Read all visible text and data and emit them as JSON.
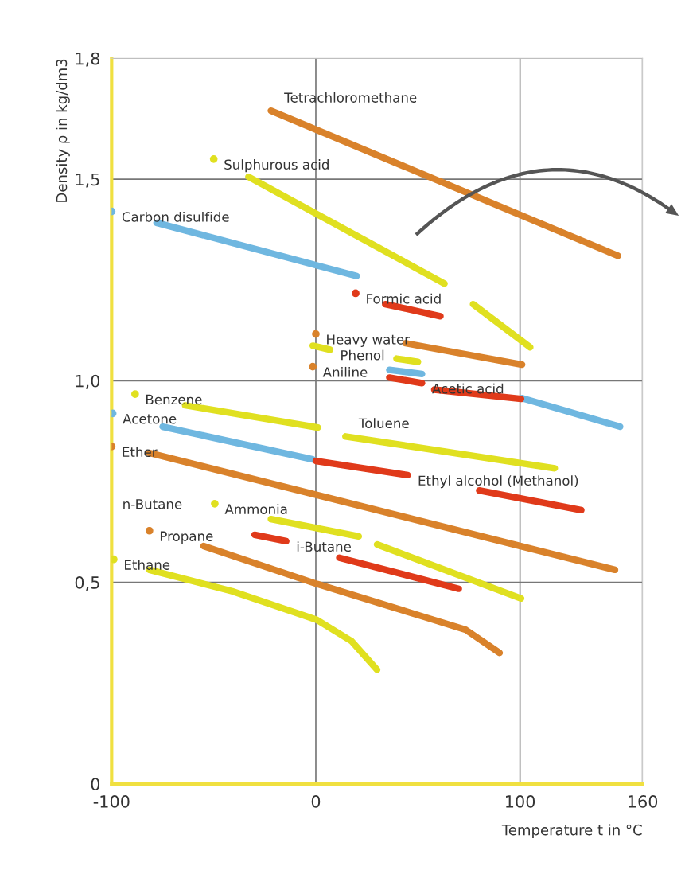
{
  "chart_data": {
    "type": "line",
    "xlabel": "Temperature t in °C",
    "ylabel": "Density ρ in kg/dm3",
    "xlim": [
      -100,
      160
    ],
    "ylim": [
      0,
      1.8
    ],
    "xticks": [
      -100,
      0,
      100,
      160
    ],
    "yticks": [
      0,
      {
        "value": 0.5,
        "label": "0,5"
      },
      {
        "value": 1.0,
        "label": "1,0"
      },
      {
        "value": 1.5,
        "label": "1,5"
      },
      {
        "value": 1.8,
        "label": "1,8"
      }
    ],
    "grid": true,
    "line_style": "solid",
    "series": [
      {
        "name": "Tetrachloromethane",
        "color": "#d9822b",
        "x": [
          -22,
          148
        ],
        "values": [
          1.67,
          1.31
        ]
      },
      {
        "name": "Sulphurous acid",
        "color": "#e0e020",
        "x": [
          -50,
          null,
          -33,
          63,
          null,
          77,
          105
        ],
        "values": [
          1.55,
          null,
          1.506,
          1.241,
          null,
          1.19,
          1.083
        ]
      },
      {
        "name": "Carbon disulfide",
        "color": "#6fb7e0",
        "x": [
          -100,
          null,
          -78,
          20
        ],
        "values": [
          1.42,
          null,
          1.392,
          1.26
        ]
      },
      {
        "name": "Formic acid",
        "color": "#e03a1a",
        "x": [
          19.5,
          null,
          34,
          61
        ],
        "values": [
          1.217,
          null,
          1.19,
          1.16
        ]
      },
      {
        "name": "Heavy water",
        "color": "#d9822b",
        "x": [
          0,
          null,
          44,
          101
        ],
        "values": [
          1.116,
          null,
          1.093,
          1.04
        ]
      },
      {
        "name": "Phenol",
        "color": "#e0e020",
        "x": [
          -1.5,
          7,
          null,
          39.5,
          50
        ],
        "values": [
          1.087,
          1.077,
          null,
          1.055,
          1.047
        ]
      },
      {
        "name": "Aniline",
        "color": "#d9822b",
        "marker": "circle",
        "x": [
          -1.5
        ],
        "values": [
          1.035
        ]
      },
      {
        "color": "#6fb7e0",
        "x": [
          36,
          52,
          null,
          101,
          149
        ],
        "values": [
          1.027,
          1.017,
          null,
          0.957,
          0.886
        ]
      },
      {
        "name": "Acetic acid",
        "color": "#e03a1a",
        "x": [
          36,
          52,
          null,
          58,
          100.5
        ],
        "values": [
          1.008,
          0.994,
          null,
          0.978,
          0.955
        ]
      },
      {
        "name": "Benzene",
        "color": "#e0e020",
        "x": [
          -88.5,
          null,
          -64,
          1
        ],
        "values": [
          0.967,
          null,
          0.939,
          0.884
        ]
      },
      {
        "name": "Toluene",
        "color": "#e0e020",
        "x": [
          14.5,
          117
        ],
        "values": [
          0.862,
          0.783
        ]
      },
      {
        "name": "Acetone",
        "color": "#6fb7e0",
        "x": [
          -99.5,
          null,
          -75,
          -1.5
        ],
        "values": [
          0.919,
          null,
          0.886,
          0.805
        ]
      },
      {
        "name": "Ethyl alcohol (Methanol)",
        "color": "#e03a1a",
        "x": [
          0,
          45,
          null,
          80,
          130
        ],
        "values": [
          0.801,
          0.766,
          null,
          0.728,
          0.679
        ]
      },
      {
        "name": "Ether",
        "color": "#d9822b",
        "x": [
          -100,
          null,
          -81.5,
          146.5
        ],
        "values": [
          0.837,
          null,
          0.821,
          0.531
        ]
      },
      {
        "name": "Ammonia",
        "color": "#e0e020",
        "x": [
          -49.5,
          null,
          -22,
          21,
          null,
          30,
          100.5
        ],
        "values": [
          0.695,
          null,
          0.657,
          0.614,
          null,
          0.594,
          0.46
        ]
      },
      {
        "name": "Propane",
        "color": "#d9822b",
        "x": [
          -81.5,
          null,
          -55,
          0.5,
          52.5,
          73.5,
          90
        ],
        "values": [
          0.628,
          null,
          0.59,
          0.496,
          0.415,
          0.382,
          0.325
        ]
      },
      {
        "name": "i-Butane",
        "color": "#e03a1a",
        "x": [
          -30,
          -14.5,
          null,
          11.5,
          70
        ],
        "values": [
          0.618,
          0.602,
          null,
          0.561,
          0.484
        ]
      },
      {
        "name": "Ethane",
        "color": "#e0e020",
        "x": [
          -99,
          null,
          -81.5,
          -41,
          0.5,
          17.5,
          30
        ],
        "values": [
          0.557,
          null,
          0.531,
          0.478,
          0.407,
          0.354,
          0.283
        ]
      }
    ],
    "annotations": [
      "n-Butane"
    ]
  }
}
